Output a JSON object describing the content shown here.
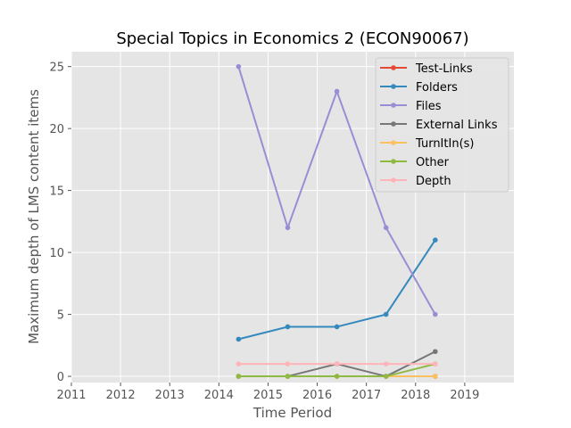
{
  "chart_data": {
    "type": "line",
    "title": "Special Topics in Economics 2 (ECON90067)",
    "xlabel": "Time Period",
    "ylabel": "Maximum depth of LMS content items",
    "xlim": [
      2011,
      2020
    ],
    "ylim": [
      -0.5,
      26.2
    ],
    "x_ticks": [
      2011,
      2012,
      2013,
      2014,
      2015,
      2016,
      2017,
      2018,
      2019
    ],
    "y_ticks": [
      0,
      5,
      10,
      15,
      20,
      25
    ],
    "x": [
      2014.4,
      2015.4,
      2016.4,
      2017.4,
      2018.4
    ],
    "grid": true,
    "legend_position": "top-right",
    "series": [
      {
        "name": "Test-Links",
        "color": "#E24A33",
        "values": [
          0,
          0,
          0,
          0,
          0
        ]
      },
      {
        "name": "Folders",
        "color": "#348ABD",
        "values": [
          3,
          4,
          4,
          5,
          11
        ]
      },
      {
        "name": "Files",
        "color": "#988ED5",
        "values": [
          25,
          12,
          23,
          12,
          5
        ]
      },
      {
        "name": "External Links",
        "color": "#777777",
        "values": [
          0,
          0,
          1,
          0,
          2
        ]
      },
      {
        "name": "TurnItIn(s)",
        "color": "#FBC15E",
        "values": [
          0,
          0,
          0,
          0,
          0
        ]
      },
      {
        "name": "Other",
        "color": "#8EBA42",
        "values": [
          0,
          0,
          0,
          0,
          1
        ]
      },
      {
        "name": "Depth",
        "color": "#FFB5B8",
        "values": [
          1,
          1,
          1,
          1,
          1
        ]
      }
    ]
  }
}
